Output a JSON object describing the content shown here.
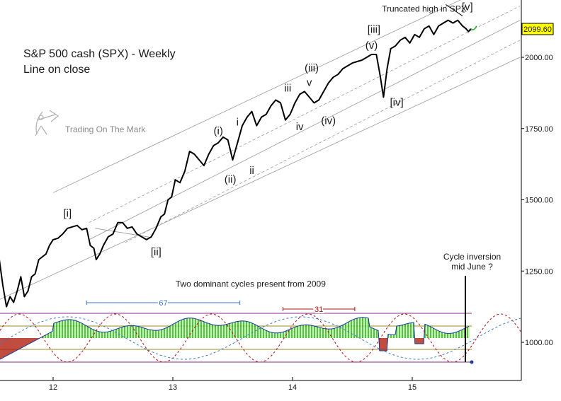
{
  "chart_data": {
    "type": "line",
    "title": "S&P 500 cash (SPX) - Weekly",
    "subtitle": "Line on close",
    "watermark": "Trading On The Mark",
    "price_label": "2099.60",
    "ylim": [
      840,
      2200
    ],
    "xlim": [
      11.5,
      15.9
    ],
    "y_ticks": [
      {
        "value": 2000,
        "label": "2000.00"
      },
      {
        "value": 1750,
        "label": "1750.00"
      },
      {
        "value": 1500,
        "label": "1500.00"
      },
      {
        "value": 1250,
        "label": "1250.00"
      },
      {
        "value": 1000,
        "label": "1000.00"
      }
    ],
    "x_ticks": [
      {
        "value": 12,
        "label": "12"
      },
      {
        "value": 13,
        "label": "13"
      },
      {
        "value": 14,
        "label": "14"
      },
      {
        "value": 15,
        "label": "15"
      }
    ],
    "series": [
      {
        "x": [
          11.52,
          11.55,
          11.58,
          11.61,
          11.64,
          11.67,
          11.7,
          11.73,
          11.76,
          11.79,
          11.82,
          11.85,
          11.88,
          11.91,
          11.94,
          11.97,
          12.0,
          12.04,
          12.08,
          12.12,
          12.16,
          12.2,
          12.24,
          12.28,
          12.31,
          12.34,
          12.36,
          12.39,
          12.42,
          12.46,
          12.5,
          12.54,
          12.58,
          12.62,
          12.66,
          12.7,
          12.74,
          12.78,
          12.82,
          12.86,
          12.9,
          12.93,
          12.96,
          12.99,
          13.02,
          13.06,
          13.1,
          13.14,
          13.18,
          13.22,
          13.26,
          13.3,
          13.34,
          13.38,
          13.42,
          13.46,
          13.5,
          13.54,
          13.58,
          13.62,
          13.66,
          13.7,
          13.74,
          13.78,
          13.82,
          13.86,
          13.9,
          13.94,
          13.98,
          14.02,
          14.06,
          14.1,
          14.14,
          14.18,
          14.22,
          14.26,
          14.3,
          14.34,
          14.38,
          14.42,
          14.46,
          14.5,
          14.54,
          14.58,
          14.62,
          14.66,
          14.7,
          14.73,
          14.76,
          14.79,
          14.82,
          14.86,
          14.9,
          14.94,
          14.98,
          15.02,
          15.06,
          15.1,
          15.14,
          15.18,
          15.22,
          15.26,
          15.3,
          15.34,
          15.38,
          15.42,
          15.45,
          15.47,
          15.49
        ],
        "y": [
          1330,
          1290,
          1200,
          1125,
          1160,
          1140,
          1180,
          1230,
          1160,
          1180,
          1230,
          1240,
          1290,
          1300,
          1310,
          1340,
          1360,
          1365,
          1380,
          1400,
          1405,
          1410,
          1395,
          1400,
          1340,
          1330,
          1290,
          1310,
          1340,
          1370,
          1380,
          1420,
          1420,
          1400,
          1405,
          1380,
          1370,
          1360,
          1370,
          1400,
          1440,
          1450,
          1500,
          1510,
          1570,
          1560,
          1600,
          1670,
          1660,
          1640,
          1620,
          1660,
          1690,
          1700,
          1720,
          1710,
          1640,
          1700,
          1760,
          1790,
          1810,
          1760,
          1790,
          1800,
          1830,
          1850,
          1840,
          1780,
          1800,
          1840,
          1870,
          1880,
          1860,
          1840,
          1850,
          1880,
          1910,
          1930,
          1940,
          1960,
          1970,
          1980,
          1985,
          1990,
          2000,
          2010,
          2010,
          1940,
          1860,
          1960,
          2030,
          2040,
          2060,
          2070,
          2050,
          2080,
          2070,
          2100,
          2110,
          2080,
          2110,
          2120,
          2130,
          2120,
          2130,
          2110,
          2100,
          2090,
          2100
        ]
      }
    ],
    "wave_labels": [
      {
        "text": "[i]",
        "x": 12.12,
        "y": 1440
      },
      {
        "text": "[ii]",
        "x": 12.86,
        "y": 1305
      },
      {
        "text": "(i)",
        "x": 13.38,
        "y": 1730
      },
      {
        "text": "(ii)",
        "x": 13.48,
        "y": 1560
      },
      {
        "text": "i",
        "x": 13.54,
        "y": 1760
      },
      {
        "text": "ii",
        "x": 13.66,
        "y": 1590
      },
      {
        "text": "iii",
        "x": 13.96,
        "y": 1880
      },
      {
        "text": "iv",
        "x": 14.06,
        "y": 1745
      },
      {
        "text": "(iii)",
        "x": 14.16,
        "y": 1950
      },
      {
        "text": "v",
        "x": 14.14,
        "y": 1900
      },
      {
        "text": "(iv)",
        "x": 14.3,
        "y": 1765
      },
      {
        "text": "[iii]",
        "x": 14.68,
        "y": 2085
      },
      {
        "text": "(v)",
        "x": 14.66,
        "y": 2030
      },
      {
        "text": "[iv]",
        "x": 14.87,
        "y": 1830
      },
      {
        "text": "[v]",
        "x": 15.46,
        "y": 2165
      }
    ],
    "annotations": [
      {
        "text": "Truncated high in SPX",
        "x": 15.1,
        "y": 2160
      },
      {
        "text": "Two dominant cycles present from 2009",
        "x": 13.65,
        "y": 1195
      },
      {
        "text": "Cycle inversion",
        "x": 15.5,
        "y": 1290
      },
      {
        "text": "mid June ?",
        "x": 15.5,
        "y": 1255
      }
    ],
    "cycles": [
      {
        "name": "67",
        "period_bars": 67,
        "from": 12.28,
        "to": 13.56
      },
      {
        "name": "31",
        "period_bars": 31,
        "from": 13.92,
        "to": 14.52
      }
    ],
    "colors": {
      "price_line": "#000000",
      "channel_solid": "#9a9a9a",
      "channel_dashed": "#9a9a9a",
      "histogram_positive": "#22b422",
      "histogram_positive_light": "#c8f0a0",
      "histogram_negative": "#b02010",
      "oscillator_line": "#1a3aa0",
      "cycle_67": "#3a7ad0",
      "cycle_31": "#b01010",
      "band_outer": "#8a2a8a",
      "band_inner": "#a08a20",
      "label_box_bg": "#ffff00"
    }
  }
}
